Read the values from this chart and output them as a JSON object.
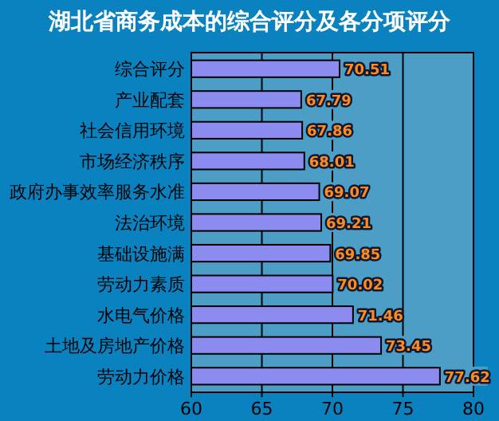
{
  "chart_data": {
    "type": "bar",
    "orientation": "horizontal",
    "title": "湖北省商务成本的综合评分及各分项评分",
    "categories": [
      "综合评分",
      "产业配套",
      "社会信用环境",
      "市场经济秩序",
      "政府办事效率服务水准",
      "法治环境",
      "基础设施满",
      "劳动力素质",
      "水电气价格",
      "土地及房地产价格",
      "劳动力价格"
    ],
    "values": [
      70.51,
      67.79,
      67.86,
      68.01,
      69.07,
      69.21,
      69.85,
      70.02,
      71.46,
      73.45,
      77.62
    ],
    "color": "#8c8cf0",
    "xlim": [
      60,
      80
    ],
    "xticks": [
      60,
      65,
      70,
      75,
      80
    ],
    "grid": "x",
    "data_labels": true
  }
}
